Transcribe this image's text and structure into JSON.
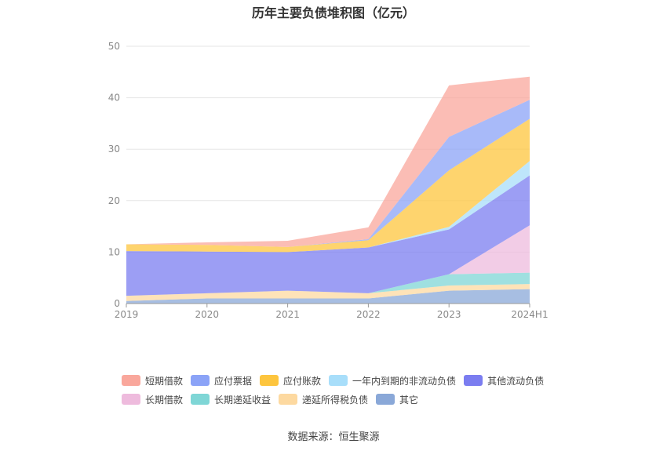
{
  "chart_data": {
    "type": "area",
    "title": "历年主要负债堆积图（亿元）",
    "categories": [
      "2019",
      "2020",
      "2021",
      "2022",
      "2023",
      "2024H1"
    ],
    "ylim": [
      0,
      50
    ],
    "yticks": [
      "0",
      "10",
      "20",
      "30",
      "40",
      "50"
    ],
    "stacked": true,
    "grid": true,
    "legend_position": "bottom",
    "series": [
      {
        "name": "其它",
        "color": "#8aa8d8",
        "values": [
          0.5,
          1.0,
          1.0,
          1.0,
          2.5,
          2.8
        ]
      },
      {
        "name": "递延所得税负债",
        "color": "#fdd9a0",
        "values": [
          1.0,
          1.0,
          1.5,
          1.0,
          1.0,
          1.0
        ]
      },
      {
        "name": "长期递延收益",
        "color": "#7fd6d6",
        "values": [
          0.0,
          0.0,
          0.0,
          0.0,
          2.2,
          2.2
        ]
      },
      {
        "name": "长期借款",
        "color": "#eebbdd",
        "values": [
          0.0,
          0.0,
          0.0,
          0.0,
          0.0,
          9.2
        ]
      },
      {
        "name": "其他流动负债",
        "color": "#7b7df0",
        "values": [
          8.7,
          8.1,
          7.5,
          8.9,
          8.7,
          9.7
        ]
      },
      {
        "name": "一年内到期的非流动负债",
        "color": "#a8defa",
        "values": [
          0.0,
          0.0,
          0.0,
          0.0,
          0.5,
          2.8
        ]
      },
      {
        "name": "应付账款",
        "color": "#fdc53e",
        "values": [
          1.3,
          1.3,
          1.0,
          1.4,
          11.0,
          8.2
        ]
      },
      {
        "name": "应付票据",
        "color": "#8ba3f7",
        "values": [
          0.0,
          0.0,
          0.0,
          0.2,
          6.5,
          3.7
        ]
      },
      {
        "name": "短期借款",
        "color": "#f9a79c",
        "values": [
          0.0,
          0.5,
          1.2,
          2.3,
          10.0,
          4.5
        ]
      }
    ],
    "legend_order": [
      "短期借款",
      "应付票据",
      "应付账款",
      "一年内到期的非流动负债",
      "其他流动负债",
      "长期借款",
      "长期递延收益",
      "递延所得税负债",
      "其它"
    ]
  },
  "source": {
    "label": "数据来源：",
    "value": "恒生聚源"
  }
}
